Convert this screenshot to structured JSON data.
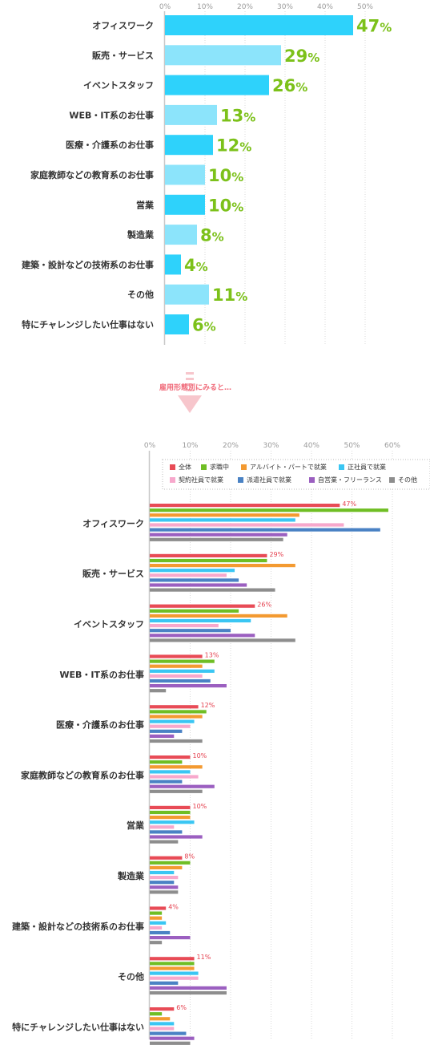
{
  "chart_data": [
    {
      "type": "bar",
      "orientation": "horizontal",
      "xticks": [
        "0%",
        "10%",
        "20%",
        "30%",
        "40%",
        "50%"
      ],
      "xlim": [
        0,
        50
      ],
      "grid": true,
      "categories": [
        "オフィスワーク",
        "販売・サービス",
        "イベントスタッフ",
        "WEB・IT系のお仕事",
        "医療・介護系のお仕事",
        "家庭教師などの教育系のお仕事",
        "営業",
        "製造業",
        "建築・設計などの技術系のお仕事",
        "その他",
        "特にチャレンジしたい仕事はない"
      ],
      "values": [
        47,
        29,
        26,
        13,
        12,
        10,
        10,
        8,
        4,
        11,
        6
      ],
      "value_labels": [
        "47%",
        "29%",
        "26%",
        "13%",
        "12%",
        "10%",
        "10%",
        "8%",
        "4%",
        "11%",
        "6%"
      ],
      "colors": {
        "dark": "#2ed2fb",
        "light": "#8ce4fb"
      }
    },
    {
      "type": "bar",
      "orientation": "horizontal",
      "xticks": [
        "0%",
        "10%",
        "20%",
        "30%",
        "40%",
        "50%",
        "60%"
      ],
      "xlim": [
        0,
        60
      ],
      "grid": true,
      "legend_position": "top-right",
      "categories": [
        "オフィスワーク",
        "販売・サービス",
        "イベントスタッフ",
        "WEB・IT系のお仕事",
        "医療・介護系のお仕事",
        "家庭教師などの教育系のお仕事",
        "営業",
        "製造業",
        "建築・設計などの技術系のお仕事",
        "その他",
        "特にチャレンジしたい仕事はない"
      ],
      "value_labels": [
        "47%",
        "29%",
        "26%",
        "13%",
        "12%",
        "10%",
        "10%",
        "8%",
        "4%",
        "11%",
        "6%"
      ],
      "series": [
        {
          "name": "全体",
          "color": "#e84b56",
          "values": [
            47,
            29,
            26,
            13,
            12,
            10,
            10,
            8,
            4,
            11,
            6
          ]
        },
        {
          "name": "求職中",
          "color": "#6fbe24",
          "values": [
            59,
            29,
            22,
            16,
            14,
            8,
            10,
            10,
            3,
            11,
            3
          ]
        },
        {
          "name": "アルバイト・パートで就業",
          "color": "#f39a31",
          "values": [
            37,
            36,
            34,
            13,
            13,
            13,
            10,
            8,
            3,
            11,
            5
          ]
        },
        {
          "name": "正社員で就業",
          "color": "#3ac6f3",
          "values": [
            36,
            21,
            25,
            16,
            11,
            10,
            11,
            6,
            4,
            12,
            6
          ]
        },
        {
          "name": "契約社員で就業",
          "color": "#f7a8cc",
          "values": [
            48,
            19,
            17,
            13,
            10,
            12,
            6,
            7,
            3,
            12,
            6
          ]
        },
        {
          "name": "派遣社員で就業",
          "color": "#4a82c4",
          "values": [
            57,
            22,
            20,
            15,
            8,
            8,
            8,
            6,
            5,
            7,
            9
          ]
        },
        {
          "name": "自営業・フリーランス",
          "color": "#9b5fc0",
          "values": [
            34,
            24,
            26,
            19,
            6,
            16,
            13,
            7,
            10,
            19,
            11
          ]
        },
        {
          "name": "その他",
          "color": "#8d8d8d",
          "values": [
            33,
            31,
            36,
            4,
            13,
            13,
            7,
            7,
            3,
            19,
            10
          ]
        }
      ]
    }
  ],
  "transition_text": "雇用形態別にみると…"
}
